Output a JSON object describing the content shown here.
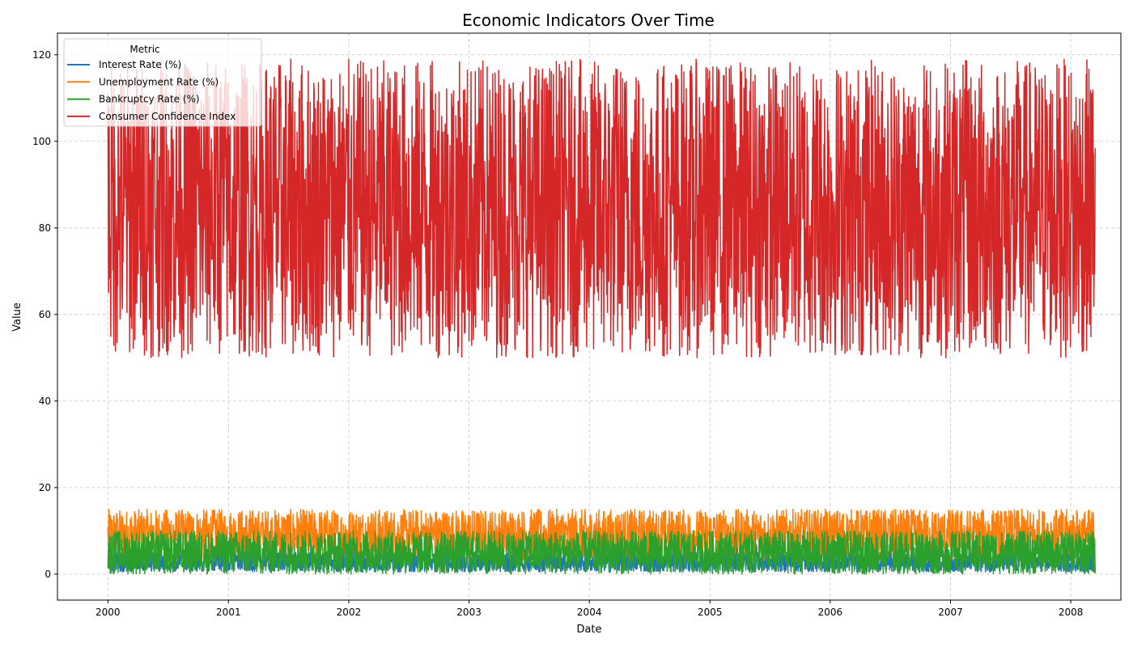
{
  "chart_data": {
    "type": "line",
    "title": "Economic Indicators Over Time",
    "xlabel": "Date",
    "ylabel": "Value",
    "xlim": [
      "1999-08-01",
      "2008-06-01"
    ],
    "ylim": [
      -6,
      125
    ],
    "x_ticks": [
      "2000",
      "2001",
      "2002",
      "2003",
      "2004",
      "2005",
      "2006",
      "2007",
      "2008"
    ],
    "y_ticks": [
      0,
      20,
      40,
      60,
      80,
      100,
      120
    ],
    "grid": true,
    "legend": {
      "title": "Metric",
      "position": "top-left"
    },
    "date_range": [
      "2000-01-01",
      "2008-03-15"
    ],
    "series": [
      {
        "name": "Interest Rate (%)",
        "color": "#1f77b4",
        "low": 0.5,
        "high": 5.0
      },
      {
        "name": "Unemployment Rate (%)",
        "color": "#ff7f0e",
        "low": 3.0,
        "high": 15.0
      },
      {
        "name": "Bankruptcy Rate (%)",
        "color": "#2ca02c",
        "low": 0.0,
        "high": 10.0
      },
      {
        "name": "Consumer Confidence Index",
        "color": "#d62728",
        "low": 50.0,
        "high": 119.0
      }
    ]
  }
}
